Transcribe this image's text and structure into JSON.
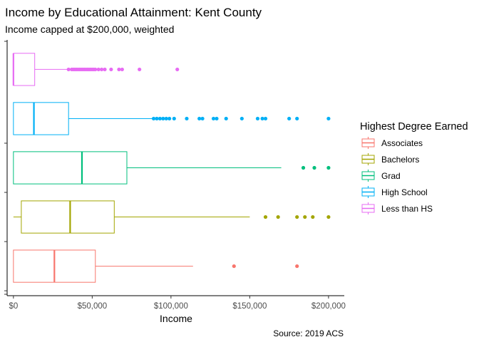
{
  "chart_data": {
    "type": "boxplot",
    "title": "Income by Educational Attainment: Kent County",
    "subtitle": "Income capped at $200,000, weighted",
    "xlabel": "Income",
    "ylabel": "",
    "caption": "Source: 2019 ACS",
    "xlim": [
      -4000,
      210000
    ],
    "xticks": [
      0,
      50000,
      100000,
      150000,
      200000
    ],
    "xtick_labels": [
      "$0",
      "$50,000",
      "$100,000",
      "$150,000",
      "$200,000"
    ],
    "grid": false,
    "legend": {
      "title": "Highest Degree Earned",
      "placement": "right",
      "entries": [
        "Associates",
        "Bachelors",
        "Grad",
        "High School",
        "Less than HS"
      ]
    },
    "series": [
      {
        "name": "Associates",
        "color": "#F8766D",
        "box": {
          "whisker_low": 0,
          "q1": 0,
          "median": 26000,
          "q3": 52000,
          "whisker_high": 114000
        },
        "outliers": [
          140000,
          180000
        ]
      },
      {
        "name": "Bachelors",
        "color": "#A3A500",
        "box": {
          "whisker_low": 0,
          "q1": 5000,
          "median": 36000,
          "q3": 64000,
          "whisker_high": 150000
        },
        "outliers": [
          160000,
          168000,
          180000,
          185000,
          190000,
          200000
        ]
      },
      {
        "name": "Grad",
        "color": "#00BF7D",
        "box": {
          "whisker_low": 0,
          "q1": 0,
          "median": 43500,
          "q3": 72000,
          "whisker_high": 170000
        },
        "outliers": [
          184000,
          191000,
          200000
        ]
      },
      {
        "name": "High School",
        "color": "#00B0F6",
        "box": {
          "whisker_low": 0,
          "q1": 0,
          "median": 13000,
          "q3": 35000,
          "whisker_high": 88000
        },
        "outliers": [
          89000,
          91000,
          93000,
          95000,
          97000,
          99000,
          102000,
          110000,
          118000,
          120000,
          127000,
          129000,
          135000,
          145000,
          155000,
          158000,
          160000,
          175000,
          180000,
          200000
        ]
      },
      {
        "name": "Less than HS",
        "color": "#E76BF3",
        "box": {
          "whisker_low": 0,
          "q1": 0,
          "median": 0,
          "q3": 13500,
          "whisker_high": 34000
        },
        "outliers": [
          35000,
          37000,
          38000,
          39000,
          40000,
          41000,
          42000,
          43000,
          44000,
          45000,
          46000,
          47000,
          48000,
          49000,
          50000,
          51000,
          52000,
          54000,
          56000,
          58000,
          62000,
          67000,
          69000,
          80000,
          104000
        ]
      }
    ]
  }
}
